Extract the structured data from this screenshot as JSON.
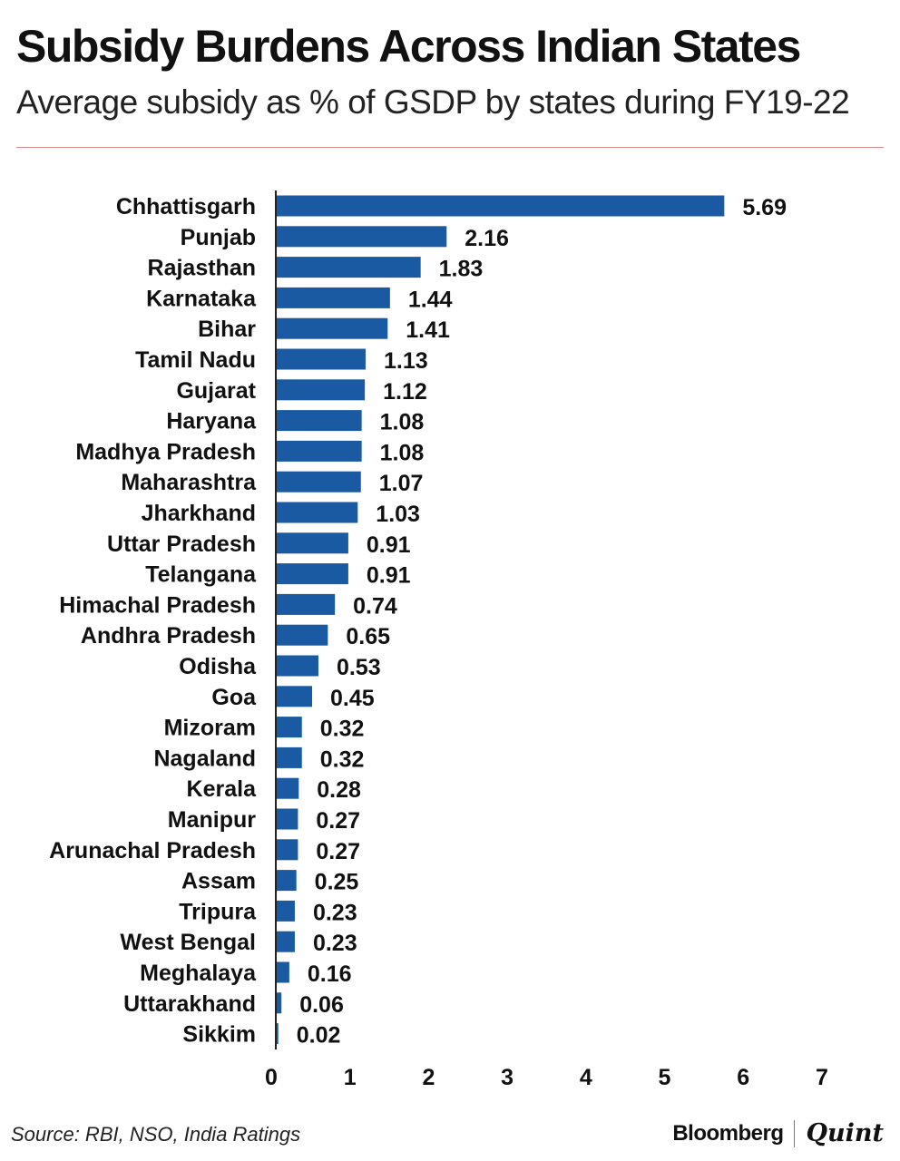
{
  "header": {
    "title": "Subsidy Burdens Across Indian States",
    "subtitle": "Average subsidy as % of GSDP by states during FY19-22"
  },
  "footer": {
    "source": "Source: RBI, NSO, India Ratings",
    "brand_primary": "Bloomberg",
    "brand_secondary": "Quint"
  },
  "colors": {
    "bar": "#1a5aa3",
    "axis": "#222222",
    "rule": "#d98a8a"
  },
  "chart_data": {
    "type": "bar",
    "orientation": "horizontal",
    "title": "Subsidy Burdens Across Indian States",
    "subtitle": "Average subsidy as % of GSDP by states during FY19-22",
    "xlabel": "",
    "ylabel": "",
    "xlim": [
      0,
      7
    ],
    "xticks": [
      0,
      1,
      2,
      3,
      4,
      5,
      6,
      7
    ],
    "grid": false,
    "legend": "none",
    "categories": [
      "Chhattisgarh",
      "Punjab",
      "Rajasthan",
      "Karnataka",
      "Bihar",
      "Tamil Nadu",
      "Gujarat",
      "Haryana",
      "Madhya Pradesh",
      "Maharashtra",
      "Jharkhand",
      "Uttar Pradesh",
      "Telangana",
      "Himachal Pradesh",
      "Andhra Pradesh",
      "Odisha",
      "Goa",
      "Mizoram",
      "Nagaland",
      "Kerala",
      "Manipur",
      "Arunachal Pradesh",
      "Assam",
      "Tripura",
      "West Bengal",
      "Meghalaya",
      "Uttarakhand",
      "Sikkim"
    ],
    "values": [
      5.69,
      2.16,
      1.83,
      1.44,
      1.41,
      1.13,
      1.12,
      1.08,
      1.08,
      1.07,
      1.03,
      0.91,
      0.91,
      0.74,
      0.65,
      0.53,
      0.45,
      0.32,
      0.32,
      0.28,
      0.27,
      0.27,
      0.25,
      0.23,
      0.23,
      0.16,
      0.06,
      0.02
    ],
    "value_labels": [
      "5.69",
      "2.16",
      "1.83",
      "1.44",
      "1.41",
      "1.13",
      "1.12",
      "1.08",
      "1.08",
      "1.07",
      "1.03",
      "0.91",
      "0.91",
      "0.74",
      "0.65",
      "0.53",
      "0.45",
      "0.32",
      "0.32",
      "0.28",
      "0.27",
      "0.27",
      "0.25",
      "0.23",
      "0.23",
      "0.16",
      "0.06",
      "0.02"
    ]
  }
}
